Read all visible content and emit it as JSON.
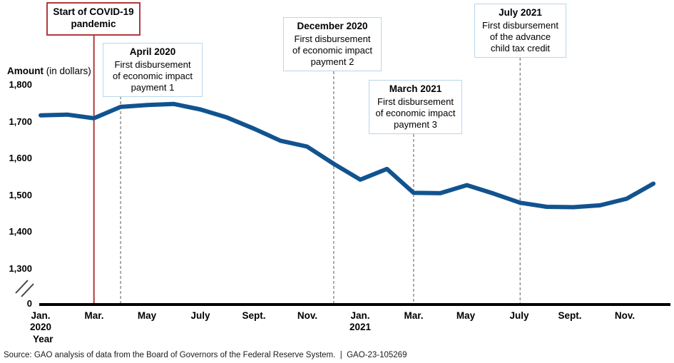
{
  "figure": {
    "amount_label_bold": "Amount",
    "amount_label_rest": " (in dollars)",
    "year_axis_label": "Year",
    "source": "Source: GAO analysis of data from the Board of Governors of the Federal Reserve System.  |  GAO-23-105269"
  },
  "y_axis": {
    "ticks": [
      "1,800",
      "1,700",
      "1,600",
      "1,500",
      "1,400",
      "1,300"
    ],
    "zero_label": "0"
  },
  "x_axis": {
    "tick_labels": [
      "Jan.",
      "Mar.",
      "May",
      "July",
      "Sept.",
      "Nov.",
      "Jan.",
      "Mar.",
      "May",
      "July",
      "Sept.",
      "Nov."
    ],
    "year_2020": "2020",
    "year_2021": "2021"
  },
  "annotations": {
    "covid": {
      "title_lines": [
        "Start of COVID-19",
        "pandemic"
      ]
    },
    "april2020": {
      "title": "April 2020",
      "body_lines": [
        "First disbursement",
        "of economic impact",
        "payment 1"
      ]
    },
    "december2020": {
      "title": "December 2020",
      "body_lines": [
        "First disbursement",
        "of economic impact",
        "payment 2"
      ]
    },
    "march2021": {
      "title": "March 2021",
      "body_lines": [
        "First disbursement",
        "of economic impact",
        "payment 3"
      ]
    },
    "july2021": {
      "title": "July 2021",
      "body_lines": [
        "First disbursement",
        "of the advance",
        "child tax credit"
      ]
    }
  },
  "colors": {
    "line": "#11538F",
    "event_red": "#B03A3E",
    "box_blue_border": "#BAD6EB",
    "dashed_gray": "#888888",
    "axis_black": "#000000"
  },
  "chart_data": {
    "type": "line",
    "title": "",
    "x": [
      "Jan. 2020",
      "Feb. 2020",
      "Mar. 2020",
      "Apr. 2020",
      "May 2020",
      "Jun. 2020",
      "Jul. 2020",
      "Aug. 2020",
      "Sep. 2020",
      "Oct. 2020",
      "Nov. 2020",
      "Dec. 2020",
      "Jan. 2021",
      "Feb. 2021",
      "Mar. 2021",
      "Apr. 2021",
      "May 2021",
      "Jun. 2021",
      "Jul. 2021",
      "Aug. 2021",
      "Sep. 2021",
      "Oct. 2021",
      "Nov. 2021",
      "Dec. 2021"
    ],
    "series": [
      {
        "name": "Amount (in dollars)",
        "values": [
          1718,
          1720,
          1710,
          1741,
          1746,
          1749,
          1734,
          1712,
          1682,
          1649,
          1633,
          1586,
          1543,
          1572,
          1507,
          1506,
          1528,
          1505,
          1480,
          1469,
          1468,
          1473,
          1491,
          1532
        ]
      }
    ],
    "xlabel": "Year",
    "ylabel": "Amount (in dollars)",
    "y_ticks_shown": [
      0,
      1300,
      1400,
      1500,
      1600,
      1700,
      1800
    ],
    "axis_break": true,
    "grid": false,
    "legend": "none",
    "events": [
      {
        "id": "covid",
        "month": "Mar. 2020",
        "month_index": 2,
        "line_style": "solid",
        "line_color": "#B03A3E"
      },
      {
        "id": "april2020",
        "month": "Apr. 2020",
        "month_index": 3,
        "line_style": "dashed",
        "line_color": "#888888"
      },
      {
        "id": "december2020",
        "month": "Dec. 2020",
        "month_index": 11,
        "line_style": "dashed",
        "line_color": "#888888"
      },
      {
        "id": "march2021",
        "month": "Mar. 2021",
        "month_index": 14,
        "line_style": "dashed",
        "line_color": "#888888"
      },
      {
        "id": "july2021",
        "month": "Jul. 2021",
        "month_index": 18,
        "line_style": "dashed",
        "line_color": "#888888"
      }
    ]
  }
}
